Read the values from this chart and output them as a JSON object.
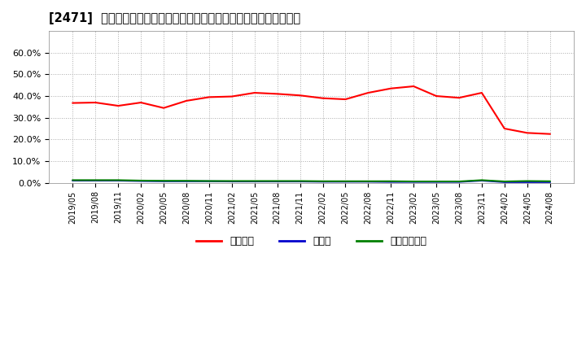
{
  "title": "[2471]  自己資本、のれん、繰延税金資産の総資産に対する比率の推移",
  "x_labels": [
    "2019/05",
    "2019/08",
    "2019/11",
    "2020/02",
    "2020/05",
    "2020/08",
    "2020/11",
    "2021/02",
    "2021/05",
    "2021/08",
    "2021/11",
    "2022/02",
    "2022/05",
    "2022/08",
    "2022/11",
    "2023/02",
    "2023/05",
    "2023/08",
    "2023/11",
    "2024/02",
    "2024/05",
    "2024/08"
  ],
  "equity_ratio": [
    0.368,
    0.37,
    0.355,
    0.37,
    0.345,
    0.378,
    0.395,
    0.398,
    0.415,
    0.41,
    0.403,
    0.39,
    0.385,
    0.415,
    0.435,
    0.445,
    0.4,
    0.392,
    0.415,
    0.25,
    0.23,
    0.225
  ],
  "noren_ratio": [
    0.01,
    0.01,
    0.01,
    0.008,
    0.007,
    0.007,
    0.007,
    0.006,
    0.006,
    0.006,
    0.006,
    0.005,
    0.005,
    0.005,
    0.004,
    0.004,
    0.004,
    0.004,
    0.01,
    0.003,
    0.003,
    0.003
  ],
  "deferred_ratio": [
    0.012,
    0.012,
    0.012,
    0.01,
    0.009,
    0.009,
    0.008,
    0.008,
    0.008,
    0.008,
    0.008,
    0.007,
    0.007,
    0.007,
    0.007,
    0.006,
    0.006,
    0.006,
    0.012,
    0.006,
    0.008,
    0.007
  ],
  "equity_color": "#ff0000",
  "noren_color": "#0000cc",
  "deferred_color": "#008000",
  "ylim": [
    0.0,
    0.7
  ],
  "yticks": [
    0.0,
    0.1,
    0.2,
    0.3,
    0.4,
    0.5,
    0.6
  ],
  "ytick_labels": [
    "0.0%",
    "10.0%",
    "20.0%",
    "30.0%",
    "40.0%",
    "50.0%",
    "60.0%"
  ],
  "legend_labels": [
    "自己資本",
    "のれん",
    "繰延税金資産"
  ],
  "bg_color": "#ffffff",
  "plot_bg_color": "#ffffff",
  "grid_color": "#aaaaaa"
}
